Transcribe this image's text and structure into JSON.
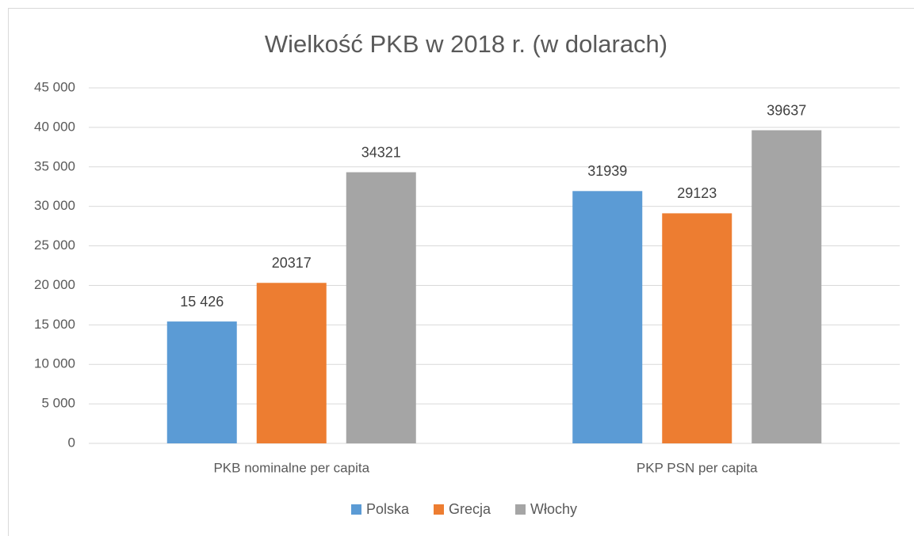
{
  "chart_data": {
    "type": "bar",
    "title": "Wielkość PKB w 2018 r. (w dolarach)",
    "categories": [
      "PKB nominalne per capita",
      "PKP PSN per capita"
    ],
    "series": [
      {
        "name": "Polska",
        "color": "#5b9bd5",
        "values": [
          15426,
          31939
        ],
        "value_labels": [
          "15 426",
          "31939"
        ]
      },
      {
        "name": "Grecja",
        "color": "#ed7d31",
        "values": [
          20317,
          29123
        ]
      },
      {
        "name": "Włochy",
        "color": "#a5a5a5",
        "values": [
          34321,
          39637
        ]
      }
    ],
    "ylim": [
      0,
      45000
    ],
    "yticks": [
      0,
      {
        "value": 5000,
        "label": "5 000"
      },
      {
        "value": 10000,
        "label": "10 000"
      },
      {
        "value": 15000,
        "label": "15 000"
      },
      {
        "value": 20000,
        "label": "20 000"
      },
      {
        "value": 25000,
        "label": "25 000"
      },
      {
        "value": 30000,
        "label": "30 000"
      },
      {
        "value": 35000,
        "label": "35 000"
      },
      {
        "value": 40000,
        "label": "40 000"
      },
      {
        "value": 45000,
        "label": "45 000"
      }
    ],
    "grid": true,
    "legend": "bottom"
  }
}
